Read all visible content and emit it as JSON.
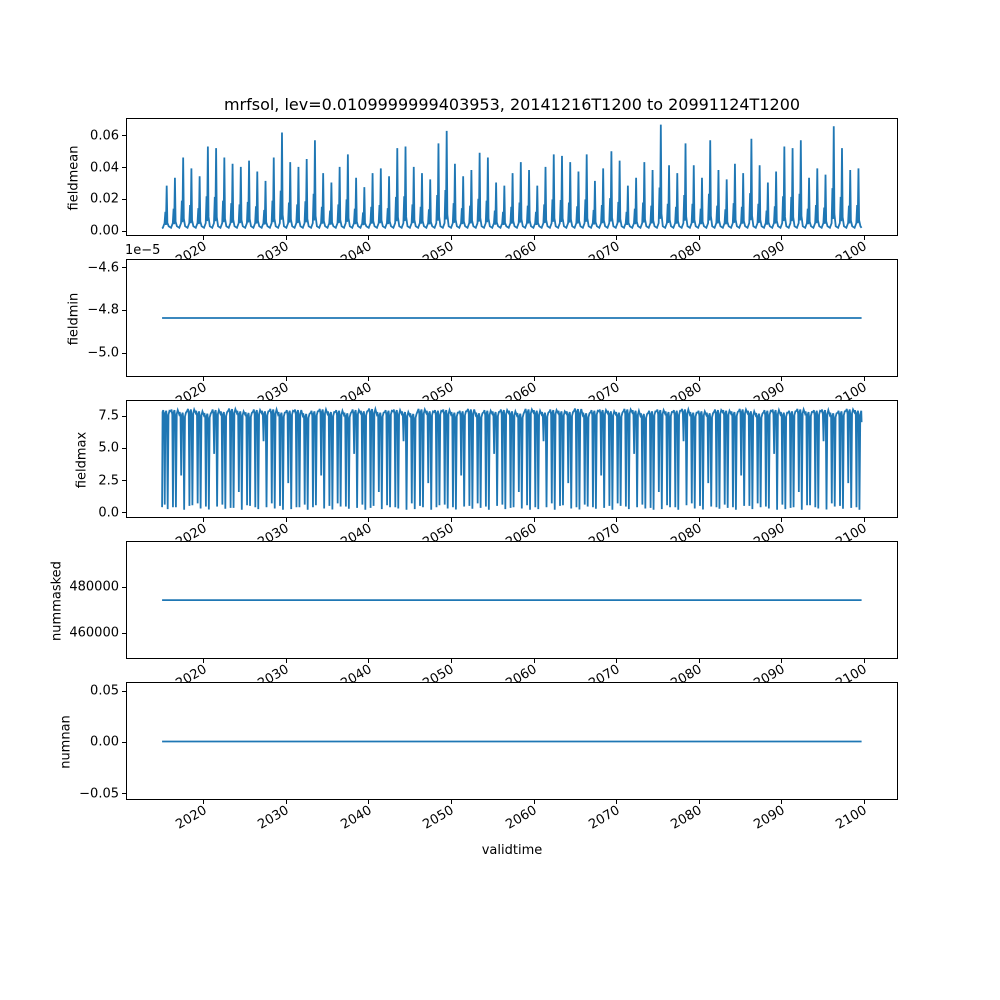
{
  "figure": {
    "title": "mrfsol, lev=0.0109999999403953, 20141216T1200 to 20991124T1200",
    "xlabel": "validtime",
    "background_color": "#ffffff",
    "line_color": "#1f77b4",
    "axis_color": "#000000"
  },
  "x_axis": {
    "xlim": [
      2010.7,
      2104.2
    ],
    "ticks": [
      2020,
      2030,
      2040,
      2050,
      2060,
      2070,
      2080,
      2090,
      2100
    ],
    "tick_labels": [
      "2020",
      "2030",
      "2040",
      "2050",
      "2060",
      "2070",
      "2080",
      "2090",
      "2100"
    ],
    "data_start": 2014.96,
    "data_end": 2099.9,
    "tick_rotation_deg": 30
  },
  "chart_data": [
    {
      "type": "line",
      "name": "fieldmean",
      "ylabel": "fieldmean",
      "ylim": [
        -0.0036,
        0.0706
      ],
      "yticks": [
        0.0,
        0.02,
        0.04,
        0.06
      ],
      "ytick_labels": [
        "0.00",
        "0.02",
        "0.04",
        "0.06"
      ],
      "series": {
        "kind": "annual_spikes",
        "year_start": 2015,
        "baseline": 0.001,
        "peaks": [
          0.028,
          0.033,
          0.046,
          0.039,
          0.034,
          0.053,
          0.052,
          0.046,
          0.042,
          0.04,
          0.044,
          0.037,
          0.031,
          0.046,
          0.062,
          0.043,
          0.04,
          0.045,
          0.057,
          0.036,
          0.03,
          0.04,
          0.048,
          0.033,
          0.027,
          0.036,
          0.039,
          0.034,
          0.052,
          0.053,
          0.04,
          0.036,
          0.032,
          0.055,
          0.063,
          0.042,
          0.034,
          0.038,
          0.049,
          0.046,
          0.03,
          0.028,
          0.036,
          0.043,
          0.038,
          0.028,
          0.04,
          0.048,
          0.047,
          0.043,
          0.037,
          0.048,
          0.031,
          0.039,
          0.05,
          0.044,
          0.028,
          0.033,
          0.043,
          0.038,
          0.067,
          0.041,
          0.036,
          0.055,
          0.041,
          0.033,
          0.057,
          0.038,
          0.032,
          0.042,
          0.036,
          0.058,
          0.041,
          0.03,
          0.037,
          0.053,
          0.052,
          0.057,
          0.033,
          0.039,
          0.035,
          0.066,
          0.052,
          0.038,
          0.039
        ]
      }
    },
    {
      "type": "line",
      "name": "fieldmin",
      "ylabel": "fieldmin",
      "offset_text": "1e−5",
      "scale": 1e-05,
      "ylim": [
        -5.117,
        -4.563
      ],
      "yticks": [
        -4.6,
        -4.8,
        -5.0
      ],
      "ytick_labels": [
        "−4.6",
        "−4.8",
        "−5.0"
      ],
      "series": {
        "kind": "constant",
        "value": -4.84
      }
    },
    {
      "type": "line",
      "name": "fieldmax",
      "ylabel": "fieldmax",
      "ylim": [
        -0.473,
        8.67
      ],
      "yticks": [
        0.0,
        2.5,
        5.0,
        7.5
      ],
      "ytick_labels": [
        "0.0",
        "2.5",
        "5.0",
        "7.5"
      ],
      "series": {
        "kind": "annual_wave",
        "year_start": 2015,
        "highs": [
          7.95,
          8.0,
          7.8,
          8.05,
          7.9,
          7.72,
          8.0,
          7.85,
          8.08,
          7.9,
          7.78,
          8.0,
          7.9,
          8.05,
          7.8,
          7.95,
          8.0,
          7.7,
          7.9,
          8.05,
          7.85,
          7.95,
          7.75,
          8.0,
          7.9,
          8.08,
          7.8,
          7.95,
          8.0,
          7.85,
          7.7,
          8.05,
          7.9,
          7.95,
          8.0,
          7.8,
          7.9,
          8.05,
          7.75,
          7.95,
          7.85,
          8.0,
          7.9,
          7.72,
          8.05,
          7.95,
          7.8,
          8.0,
          7.9,
          7.85,
          8.08,
          7.75,
          7.95,
          8.0,
          7.9,
          7.8,
          8.05,
          7.95,
          7.7,
          7.9,
          8.0,
          7.85,
          7.95,
          8.05,
          7.8,
          7.9,
          7.75,
          8.0,
          7.95,
          7.85,
          8.05,
          7.9,
          7.72,
          7.95,
          8.0,
          7.8,
          7.9,
          8.05,
          7.85,
          7.95,
          8.0,
          7.75,
          7.9,
          8.05,
          7.95
        ],
        "lows": [
          0.15,
          0.3,
          0.1,
          0.45,
          0.2,
          0.12,
          0.35,
          0.18,
          0.25,
          0.1,
          0.4,
          0.15,
          0.3,
          0.2,
          0.1,
          0.15,
          0.3,
          0.1,
          0.45,
          0.2,
          0.12,
          0.35,
          0.18,
          0.25,
          0.1,
          0.4,
          0.15,
          0.3,
          0.2,
          0.1,
          0.15,
          0.3,
          0.1,
          0.45,
          0.2,
          0.12,
          0.35,
          0.18,
          0.25,
          0.1,
          0.4,
          0.15,
          0.3,
          0.2,
          0.1,
          0.15,
          0.3,
          0.1,
          0.45,
          0.2,
          0.12,
          0.35,
          0.18,
          0.25,
          0.1,
          0.4,
          0.15,
          0.3,
          0.2,
          0.1,
          0.15,
          0.3,
          0.1,
          0.45,
          0.2,
          0.12,
          0.35,
          0.18,
          0.25,
          0.1,
          0.4,
          0.15,
          0.3,
          0.2,
          0.1,
          0.15,
          0.3,
          0.1,
          0.45,
          0.2,
          0.12,
          0.35,
          0.18,
          0.25,
          0.1
        ],
        "lows2": [
          0.5,
          0.3,
          2.8,
          0.4,
          0.6,
          0.35,
          4.5,
          0.5,
          0.25,
          1.5,
          0.45,
          0.3,
          5.5,
          0.6,
          0.4,
          2.2,
          0.3,
          0.5,
          0.3,
          2.8,
          0.4,
          0.6,
          0.35,
          4.5,
          0.5,
          0.25,
          1.5,
          0.45,
          0.3,
          5.5,
          0.6,
          0.4,
          2.2,
          0.3,
          0.5,
          0.3,
          2.8,
          0.4,
          0.6,
          0.35,
          4.5,
          0.5,
          0.25,
          1.5,
          0.45,
          0.3,
          5.5,
          0.6,
          0.4,
          2.2,
          0.3,
          0.5,
          0.3,
          2.8,
          0.4,
          0.6,
          0.35,
          4.5,
          0.5,
          0.25,
          1.5,
          0.45,
          0.3,
          5.5,
          0.6,
          0.4,
          2.2,
          0.3,
          0.5,
          0.3,
          2.8,
          0.4,
          0.6,
          0.35,
          4.5,
          0.5,
          0.25,
          1.5,
          0.45,
          0.3,
          5.5,
          0.6,
          0.4,
          2.2,
          0.3
        ]
      }
    },
    {
      "type": "line",
      "name": "nummasked",
      "ylabel": "nummasked",
      "ylim": [
        448300,
        499600
      ],
      "yticks": [
        460000,
        480000
      ],
      "ytick_labels": [
        "460000",
        "480000"
      ],
      "series": {
        "kind": "constant",
        "value": 473900
      }
    },
    {
      "type": "line",
      "name": "numnan",
      "ylabel": "numnan",
      "ylim": [
        -0.0569,
        0.0578
      ],
      "yticks": [
        -0.05,
        0.0,
        0.05
      ],
      "ytick_labels": [
        "−0.05",
        "0.00",
        "0.05"
      ],
      "series": {
        "kind": "constant",
        "value": 0.0
      }
    }
  ]
}
